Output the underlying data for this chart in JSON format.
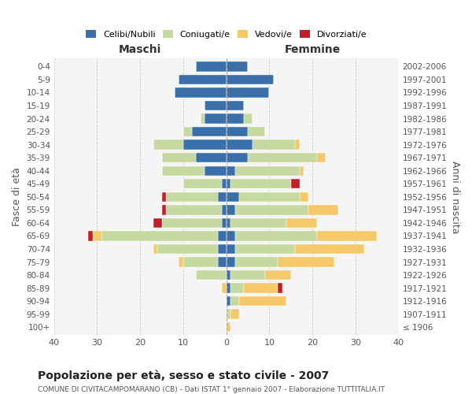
{
  "age_groups": [
    "100+",
    "95-99",
    "90-94",
    "85-89",
    "80-84",
    "75-79",
    "70-74",
    "65-69",
    "60-64",
    "55-59",
    "50-54",
    "45-49",
    "40-44",
    "35-39",
    "30-34",
    "25-29",
    "20-24",
    "15-19",
    "10-14",
    "5-9",
    "0-4"
  ],
  "birth_years": [
    "≤ 1906",
    "1907-1911",
    "1912-1916",
    "1917-1921",
    "1922-1926",
    "1927-1931",
    "1932-1936",
    "1937-1941",
    "1942-1946",
    "1947-1951",
    "1952-1956",
    "1957-1961",
    "1962-1966",
    "1967-1971",
    "1972-1976",
    "1977-1981",
    "1982-1986",
    "1987-1991",
    "1992-1996",
    "1997-2001",
    "2002-2006"
  ],
  "maschi": {
    "celibi": [
      0,
      0,
      0,
      0,
      0,
      2,
      2,
      2,
      1,
      1,
      2,
      1,
      5,
      7,
      10,
      8,
      5,
      5,
      12,
      11,
      7
    ],
    "coniugati": [
      0,
      0,
      0,
      0,
      7,
      8,
      14,
      27,
      14,
      13,
      12,
      9,
      10,
      8,
      7,
      2,
      1,
      0,
      0,
      0,
      0
    ],
    "vedovi": [
      0,
      0,
      0,
      1,
      0,
      1,
      1,
      2,
      0,
      0,
      0,
      0,
      0,
      0,
      0,
      0,
      0,
      0,
      0,
      0,
      0
    ],
    "divorziati": [
      0,
      0,
      0,
      0,
      0,
      0,
      0,
      1,
      2,
      1,
      1,
      0,
      0,
      0,
      0,
      0,
      0,
      0,
      0,
      0,
      0
    ]
  },
  "femmine": {
    "nubili": [
      0,
      0,
      1,
      1,
      1,
      2,
      2,
      2,
      1,
      2,
      3,
      1,
      2,
      5,
      6,
      5,
      4,
      4,
      10,
      11,
      5
    ],
    "coniugate": [
      0,
      1,
      2,
      3,
      8,
      10,
      14,
      19,
      13,
      17,
      14,
      14,
      15,
      16,
      10,
      4,
      2,
      0,
      0,
      0,
      0
    ],
    "vedove": [
      1,
      2,
      11,
      8,
      6,
      13,
      16,
      14,
      7,
      7,
      2,
      0,
      1,
      2,
      1,
      0,
      0,
      0,
      0,
      0,
      0
    ],
    "divorziate": [
      0,
      0,
      0,
      1,
      0,
      0,
      0,
      0,
      0,
      0,
      0,
      2,
      0,
      0,
      0,
      0,
      0,
      0,
      0,
      0,
      0
    ]
  },
  "colors": {
    "celibi_nubili": "#3a6fa8",
    "coniugati": "#c5d9a0",
    "vedovi": "#f5c96a",
    "divorziati": "#c0202a"
  },
  "xlim": 40,
  "title": "Popolazione per età, sesso e stato civile - 2007",
  "subtitle": "COMUNE DI CIVITACAMPOMARANO (CB) - Dati ISTAT 1° gennaio 2007 - Elaborazione TUTTITALIA.IT",
  "ylabel_left": "Fasce di età",
  "ylabel_right": "Anni di nascita",
  "xlabel_maschi": "Maschi",
  "xlabel_femmine": "Femmine",
  "legend_labels": [
    "Celibi/Nubili",
    "Coniugati/e",
    "Vedovi/e",
    "Divorziati/e"
  ]
}
